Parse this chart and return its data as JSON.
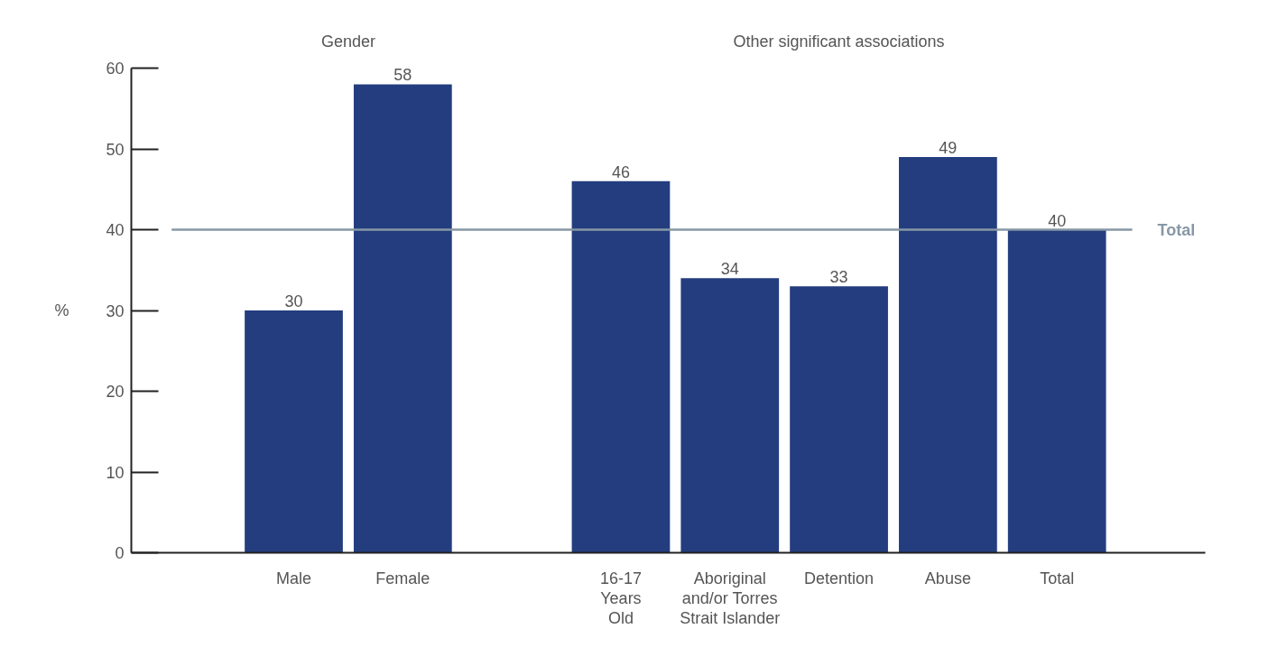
{
  "chart_data": {
    "type": "bar",
    "categories": [
      "Male",
      "Female",
      null,
      "16-17\nYears\nOld",
      "Aboriginal\nand/or Torres\nStrait Islander",
      "Detention",
      "Abuse",
      "Total"
    ],
    "values": [
      30,
      58,
      null,
      46,
      34,
      33,
      49,
      40
    ],
    "color": "#233d7e",
    "ylabel": "%",
    "ylim": [
      0,
      60
    ],
    "yticks": [
      0,
      10,
      20,
      30,
      40,
      50,
      60
    ],
    "data_labels": true,
    "ref_lines": [
      {
        "axis": "y",
        "value": 40,
        "label": "Total",
        "color": "#8797a6"
      }
    ],
    "annotations": [
      "Gender",
      "Other significant associations"
    ]
  }
}
